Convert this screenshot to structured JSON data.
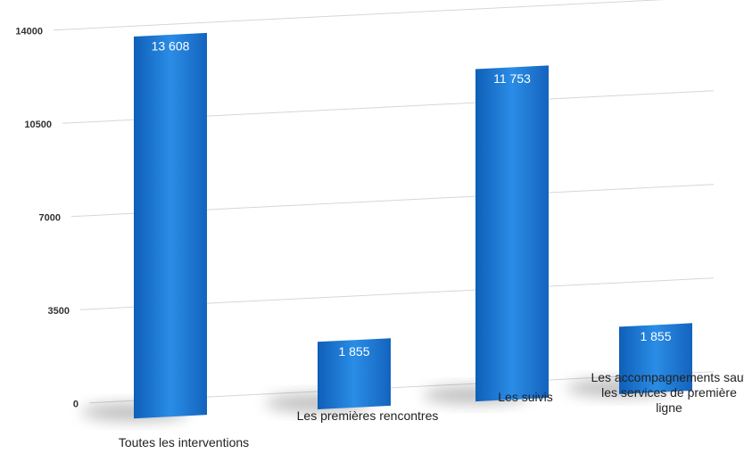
{
  "chart_data": {
    "type": "bar",
    "categories": [
      "Toutes les interventions",
      "Les premières rencontres",
      "Les suivis",
      "Les accompagnements sauf les services de première ligne"
    ],
    "values": [
      13608,
      1855,
      11753,
      1855
    ],
    "value_labels": [
      "13 608",
      "1 855",
      "11 753",
      "1 855"
    ],
    "color": "#1a78d2",
    "ylim": [
      0,
      14000
    ],
    "yticks": [
      0,
      3500,
      7000,
      10500,
      14000
    ],
    "grid": true
  }
}
